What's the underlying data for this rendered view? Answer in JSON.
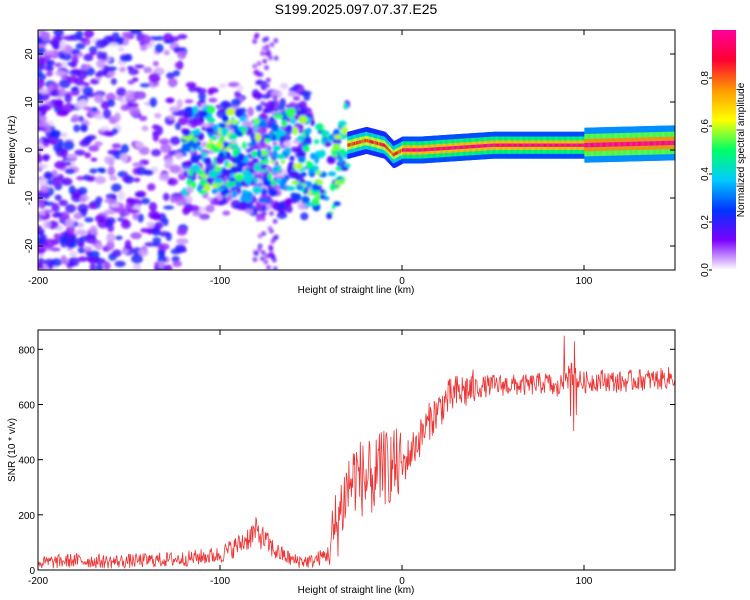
{
  "title": "S199.2025.097.07.37.E25",
  "chart_data": [
    {
      "type": "heatmap",
      "xlabel": "Height of straight line (km)",
      "ylabel": "Frequency (Hz)",
      "xlim": [
        -200,
        150
      ],
      "ylim": [
        -25,
        25
      ],
      "xticks": [
        -200,
        -100,
        0,
        100
      ],
      "yticks": [
        -20,
        -10,
        0,
        10,
        20
      ],
      "colorbar": {
        "label": "Normalized spectral amplitude",
        "range": [
          0,
          1
        ],
        "ticks": [
          0.0,
          0.2,
          0.4,
          0.6,
          0.8
        ],
        "tick_labels": [
          "0.0",
          "0.2",
          "0.4",
          "0.6",
          "0.8"
        ],
        "colormap": [
          "#ffffff",
          "#7b00ff",
          "#0033ff",
          "#00ccff",
          "#00ff66",
          "#ffff00",
          "#ff9900",
          "#ff0033",
          "#ff0099"
        ]
      },
      "ridge": {
        "x": [
          -120,
          -100,
          -80,
          -60,
          -50,
          -40,
          -30,
          -20,
          -10,
          -5,
          0,
          10,
          50,
          100,
          150
        ],
        "y": [
          0,
          0,
          -2,
          0,
          -3,
          -5,
          1,
          2,
          1,
          -1,
          0,
          0,
          1,
          1,
          1.5
        ]
      }
    },
    {
      "type": "line",
      "xlabel": "Height of straight line (km)",
      "ylabel": "SNR (10 * v/v)",
      "xlim": [
        -200,
        150
      ],
      "ylim": [
        0,
        870
      ],
      "xticks": [
        -200,
        -100,
        0,
        100
      ],
      "yticks": [
        0,
        200,
        400,
        600,
        800
      ],
      "color": "#ee3333",
      "series": [
        {
          "x": [
            -200,
            -180,
            -160,
            -140,
            -120,
            -100,
            -90,
            -80,
            -70,
            -60,
            -50,
            -40,
            -35,
            -30,
            -25,
            -20,
            -15,
            -10,
            -5,
            0,
            5,
            10,
            15,
            20,
            25,
            30,
            40,
            50,
            60,
            70,
            80,
            85,
            90,
            93,
            95,
            100,
            110,
            120,
            130,
            140,
            150
          ],
          "values": [
            25,
            35,
            30,
            35,
            40,
            55,
            90,
            140,
            70,
            35,
            30,
            60,
            190,
            300,
            350,
            320,
            340,
            370,
            380,
            370,
            430,
            480,
            540,
            580,
            620,
            640,
            660,
            670,
            670,
            670,
            680,
            650,
            700,
            720,
            690,
            680,
            690,
            680,
            690,
            690,
            700
          ]
        }
      ]
    }
  ]
}
